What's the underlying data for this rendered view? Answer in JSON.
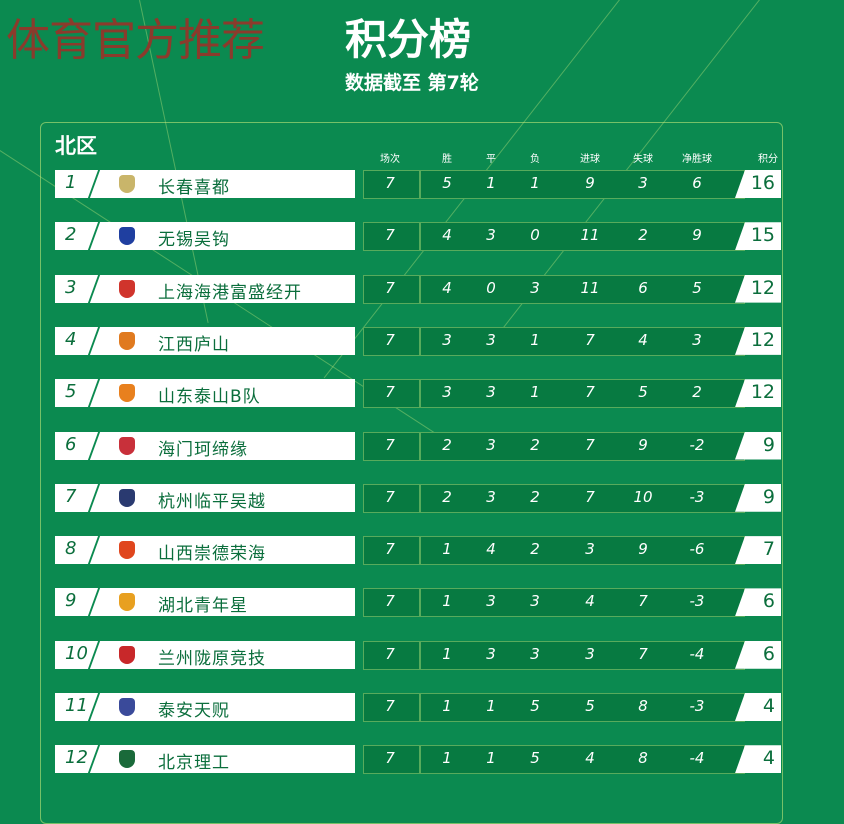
{
  "watermark": "体育官方推荐",
  "title": "积分榜",
  "subtitle": "数据截至 第7轮",
  "zone": "北区",
  "headers": [
    "场次",
    "胜",
    "平",
    "负",
    "进球",
    "失球",
    "净胜球",
    "积分"
  ],
  "colors": {
    "background": "#0b8a50",
    "stats_box": "#077a41",
    "text_dark": "#0b6e3c"
  },
  "rows": [
    {
      "rank": "1",
      "team": "长春喜都",
      "logo_color": "#c9b56a",
      "played": "7",
      "won": "5",
      "drawn": "1",
      "lost": "1",
      "gf": "9",
      "ga": "3",
      "gd": "6",
      "pts": "16"
    },
    {
      "rank": "2",
      "team": "无锡吴钩",
      "logo_color": "#1f3fa0",
      "played": "7",
      "won": "4",
      "drawn": "3",
      "lost": "0",
      "gf": "11",
      "ga": "2",
      "gd": "9",
      "pts": "15"
    },
    {
      "rank": "3",
      "team": "上海海港富盛经开",
      "logo_color": "#d0342c",
      "played": "7",
      "won": "4",
      "drawn": "0",
      "lost": "3",
      "gf": "11",
      "ga": "6",
      "gd": "5",
      "pts": "12"
    },
    {
      "rank": "4",
      "team": "江西庐山",
      "logo_color": "#e07a1f",
      "played": "7",
      "won": "3",
      "drawn": "3",
      "lost": "1",
      "gf": "7",
      "ga": "4",
      "gd": "3",
      "pts": "12"
    },
    {
      "rank": "5",
      "team": "山东泰山B队",
      "logo_color": "#e8801e",
      "played": "7",
      "won": "3",
      "drawn": "3",
      "lost": "1",
      "gf": "7",
      "ga": "5",
      "gd": "2",
      "pts": "12"
    },
    {
      "rank": "6",
      "team": "海门珂缔缘",
      "logo_color": "#c8303a",
      "played": "7",
      "won": "2",
      "drawn": "3",
      "lost": "2",
      "gf": "7",
      "ga": "9",
      "gd": "-2",
      "pts": "9"
    },
    {
      "rank": "7",
      "team": "杭州临平吴越",
      "logo_color": "#2a3a70",
      "played": "7",
      "won": "2",
      "drawn": "3",
      "lost": "2",
      "gf": "7",
      "ga": "10",
      "gd": "-3",
      "pts": "9"
    },
    {
      "rank": "8",
      "team": "山西崇德荣海",
      "logo_color": "#e0461e",
      "played": "7",
      "won": "1",
      "drawn": "4",
      "lost": "2",
      "gf": "3",
      "ga": "9",
      "gd": "-6",
      "pts": "7"
    },
    {
      "rank": "9",
      "team": "湖北青年星",
      "logo_color": "#e8a020",
      "played": "7",
      "won": "1",
      "drawn": "3",
      "lost": "3",
      "gf": "4",
      "ga": "7",
      "gd": "-3",
      "pts": "6"
    },
    {
      "rank": "10",
      "team": "兰州陇原竞技",
      "logo_color": "#c8282a",
      "played": "7",
      "won": "1",
      "drawn": "3",
      "lost": "3",
      "gf": "3",
      "ga": "7",
      "gd": "-4",
      "pts": "6"
    },
    {
      "rank": "11",
      "team": "泰安天贶",
      "logo_color": "#3a4a9a",
      "played": "7",
      "won": "1",
      "drawn": "1",
      "lost": "5",
      "gf": "5",
      "ga": "8",
      "gd": "-3",
      "pts": "4"
    },
    {
      "rank": "12",
      "team": "北京理工",
      "logo_color": "#1a6a3a",
      "played": "7",
      "won": "1",
      "drawn": "1",
      "lost": "5",
      "gf": "4",
      "ga": "8",
      "gd": "-4",
      "pts": "4"
    }
  ]
}
